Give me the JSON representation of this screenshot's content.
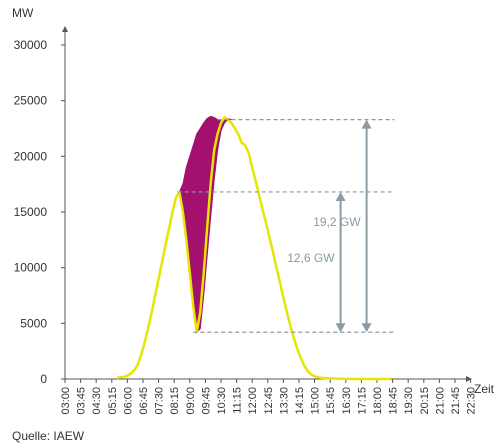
{
  "chart_data": {
    "type": "line",
    "ylabel": "MW",
    "xlabel": "Zeit",
    "source": "Quelle: IAEW",
    "ylim": [
      0,
      30000
    ],
    "yticks": [
      0,
      5000,
      10000,
      15000,
      20000,
      25000,
      30000
    ],
    "ytick_labels": [
      "0",
      "5000",
      "10000",
      "15000",
      "20000",
      "25000",
      "30000"
    ],
    "x_tick_labels": [
      "03:00",
      "03:45",
      "04:30",
      "05:15",
      "06:00",
      "06:45",
      "07:30",
      "08:15",
      "09:00",
      "09:45",
      "10:30",
      "11:15",
      "12:00",
      "12:45",
      "13:30",
      "14:15",
      "15:00",
      "15:45",
      "16:30",
      "17:15",
      "18:00",
      "18:45",
      "19:30",
      "20:15",
      "21:00",
      "21:45",
      "22:30"
    ],
    "x_tick_minutes": [
      180,
      225,
      270,
      315,
      360,
      405,
      450,
      495,
      540,
      585,
      630,
      675,
      720,
      765,
      810,
      855,
      900,
      945,
      990,
      1035,
      1080,
      1125,
      1170,
      1215,
      1260,
      1305,
      1350
    ],
    "grid": false,
    "colors": {
      "line": "#e6e600",
      "fill": "#a3106e",
      "annotation": "#8a9ba3",
      "axis": "#555555",
      "text": "#333333"
    },
    "series": [
      {
        "time_min": [
          330,
          340,
          350,
          360,
          370,
          380,
          390,
          400,
          410,
          420,
          430,
          440,
          450,
          460,
          470,
          480,
          490,
          500,
          510,
          520,
          530,
          540,
          550,
          560,
          570,
          580,
          590,
          600,
          610,
          620,
          630,
          640,
          650,
          660,
          670,
          680,
          690,
          700,
          710,
          720,
          730,
          740,
          750,
          760,
          770,
          780,
          790,
          800,
          810,
          820,
          830,
          840,
          850,
          860,
          870,
          880,
          890,
          900,
          910,
          920,
          930,
          940,
          950,
          960,
          970,
          980,
          990,
          1000,
          1010,
          1020,
          1030,
          1040,
          1050,
          1060,
          1070,
          1080,
          1090,
          1100,
          1110,
          1120
        ],
        "values": [
          100,
          150,
          200,
          300,
          500,
          800,
          1300,
          2200,
          3300,
          4600,
          6000,
          7500,
          9000,
          10500,
          12000,
          13500,
          15000,
          16300,
          16800,
          15000,
          12500,
          9500,
          6500,
          4200,
          6000,
          9500,
          13500,
          17500,
          20500,
          22000,
          23000,
          23500,
          23300,
          23000,
          22500,
          22000,
          21200,
          21000,
          20300,
          19000,
          17800,
          16500,
          15200,
          14000,
          12700,
          11400,
          10000,
          8700,
          7300,
          6000,
          4800,
          3700,
          2700,
          1900,
          1200,
          700,
          400,
          250,
          150,
          100,
          80,
          60,
          50,
          40,
          30,
          20,
          10,
          5,
          0,
          0,
          0,
          0,
          0,
          0,
          0,
          0,
          0,
          0,
          0,
          0
        ]
      }
    ],
    "shaded_region": {
      "time_min": [
        510,
        520,
        530,
        540,
        550,
        560,
        570,
        580,
        590,
        600,
        610,
        620,
        630,
        640,
        650,
        660
      ],
      "upper": [
        16800,
        17500,
        19000,
        20000,
        21000,
        22000,
        22500,
        23000,
        23400,
        23600,
        23500,
        23300,
        23200,
        23300,
        23400,
        23300
      ],
      "lower": [
        16800,
        15000,
        12500,
        9500,
        6500,
        4200,
        4500,
        7500,
        11000,
        14500,
        17800,
        20500,
        22300,
        23000,
        23300,
        23300
      ]
    },
    "reference_lines": [
      {
        "y": 23300,
        "x_start_min": 620,
        "x_end_min": 1130
      },
      {
        "y": 16800,
        "x_start_min": 505,
        "x_end_min": 1130
      },
      {
        "y": 4200,
        "x_start_min": 550,
        "x_end_min": 1130
      }
    ],
    "annotations": [
      {
        "label": "19,2 GW",
        "from": 4200,
        "to": 23300,
        "arrow_x_min": 1050
      },
      {
        "label": "12,6 GW",
        "from": 4200,
        "to": 16800,
        "arrow_x_min": 975
      }
    ]
  }
}
